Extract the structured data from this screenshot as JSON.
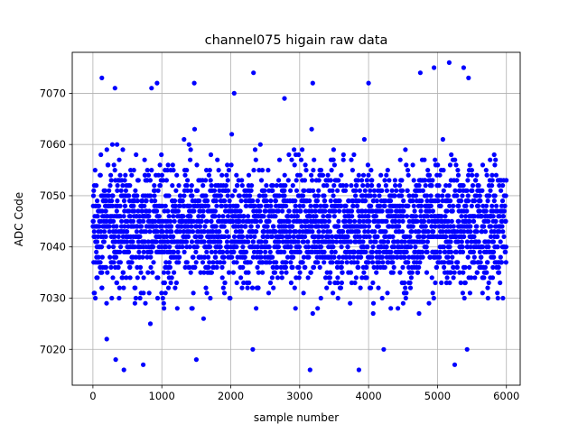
{
  "chart_data": {
    "type": "scatter",
    "title": "channel075 higain raw data",
    "xlabel": "sample number",
    "ylabel": "ADC Code",
    "xlim": [
      -300,
      6200
    ],
    "ylim": [
      7013,
      7078
    ],
    "xticks": [
      0,
      1000,
      2000,
      3000,
      4000,
      5000,
      6000
    ],
    "yticks": [
      7020,
      7030,
      7040,
      7050,
      7060,
      7070
    ],
    "grid": true,
    "n_samples": 6000,
    "series": [
      {
        "marker_color": "#0000ff",
        "value_range": [
          7016,
          7076
        ],
        "central_band": [
          7026,
          7062
        ],
        "mean": 7044,
        "notable_outliers": [
          {
            "x": 130,
            "y": 7073
          },
          {
            "x": 320,
            "y": 7071
          },
          {
            "x": 850,
            "y": 7071
          },
          {
            "x": 930,
            "y": 7072
          },
          {
            "x": 1470,
            "y": 7072
          },
          {
            "x": 2050,
            "y": 7070
          },
          {
            "x": 2330,
            "y": 7074
          },
          {
            "x": 2780,
            "y": 7069
          },
          {
            "x": 3190,
            "y": 7072
          },
          {
            "x": 4000,
            "y": 7072
          },
          {
            "x": 4750,
            "y": 7074
          },
          {
            "x": 4950,
            "y": 7075
          },
          {
            "x": 5170,
            "y": 7076
          },
          {
            "x": 5380,
            "y": 7075
          },
          {
            "x": 5450,
            "y": 7073
          },
          {
            "x": 200,
            "y": 7022
          },
          {
            "x": 330,
            "y": 7018
          },
          {
            "x": 450,
            "y": 7016
          },
          {
            "x": 730,
            "y": 7017
          },
          {
            "x": 1500,
            "y": 7018
          },
          {
            "x": 2320,
            "y": 7020
          },
          {
            "x": 3150,
            "y": 7016
          },
          {
            "x": 3860,
            "y": 7016
          },
          {
            "x": 4220,
            "y": 7020
          },
          {
            "x": 5250,
            "y": 7017
          },
          {
            "x": 5430,
            "y": 7020
          }
        ]
      }
    ]
  }
}
